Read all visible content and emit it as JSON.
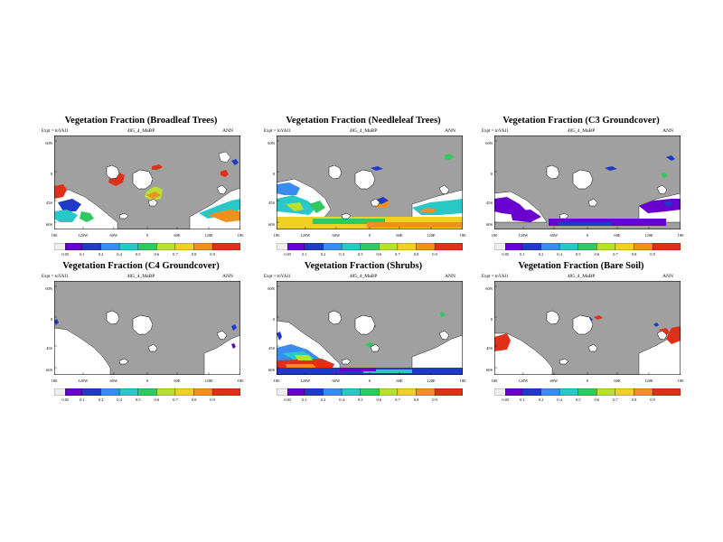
{
  "common": {
    "expt": "Expt = toYAI1",
    "case": "485_4_MaBP",
    "season": "ANN",
    "lat_labels": [
      "60N",
      "0",
      "45S",
      "60S"
    ],
    "lon_labels": [
      "180",
      "120W",
      "60W",
      "0",
      "60E",
      "120E",
      "180"
    ],
    "colorbar_labels": [
      "0.05",
      "0.1",
      "0.2",
      "0.4",
      "0.5",
      "0.6",
      "0.7",
      "0.8",
      "0.9"
    ],
    "colorbar_colors": [
      "#eeeeee",
      "#6a00d0",
      "#1f3ac8",
      "#3a8cf0",
      "#28c8c8",
      "#30c860",
      "#b8e030",
      "#f0d020",
      "#f09020",
      "#e03018"
    ],
    "land_color": "#a0a0a0",
    "nodata_color": "#ffffff"
  },
  "panels": [
    {
      "title": "Vegetation Fraction (Broadleaf Trees)",
      "pattern": "broadleaf"
    },
    {
      "title": "Vegetation Fraction (Needleleaf Trees)",
      "pattern": "needleleaf"
    },
    {
      "title": "Vegetation Fraction (C3 Groundcover)",
      "pattern": "c3"
    },
    {
      "title": "Vegetation Fraction (C4 Groundcover)",
      "pattern": "c4"
    },
    {
      "title": "Vegetation Fraction (Shrubs)",
      "pattern": "shrubs"
    },
    {
      "title": "Vegetation Fraction (Bare Soil)",
      "pattern": "bare"
    }
  ]
}
